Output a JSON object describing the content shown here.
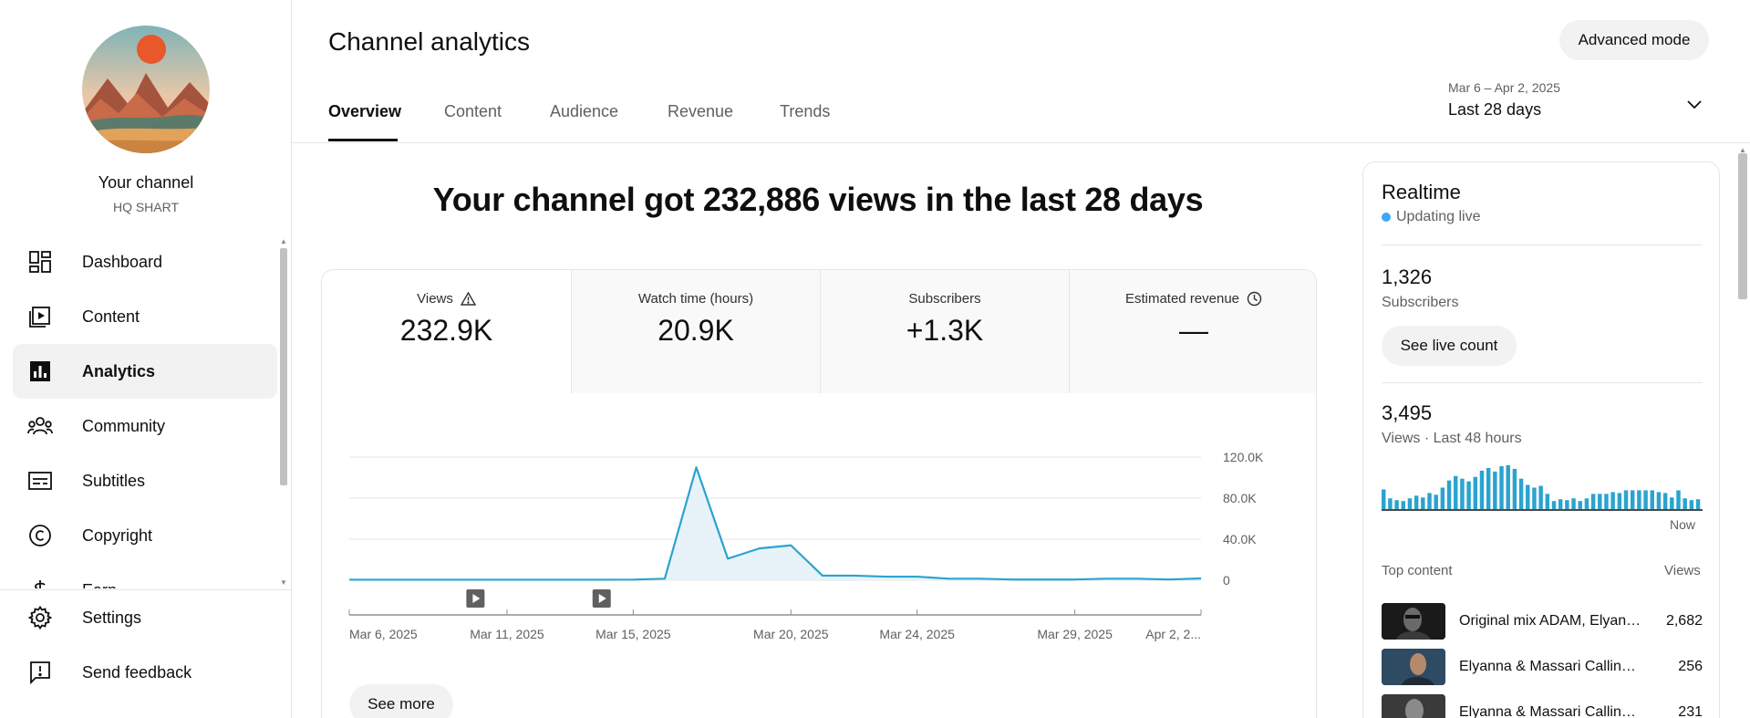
{
  "sidebar": {
    "channel_title": "Your channel",
    "channel_handle": "HQ SHART",
    "items": [
      {
        "label": "Dashboard",
        "icon": "dashboard-icon"
      },
      {
        "label": "Content",
        "icon": "content-icon"
      },
      {
        "label": "Analytics",
        "icon": "analytics-icon",
        "active": true
      },
      {
        "label": "Community",
        "icon": "community-icon"
      },
      {
        "label": "Subtitles",
        "icon": "subtitles-icon"
      },
      {
        "label": "Copyright",
        "icon": "copyright-icon"
      },
      {
        "label": "Earn",
        "icon": "earn-icon"
      }
    ],
    "footer": [
      {
        "label": "Settings",
        "icon": "gear-icon"
      },
      {
        "label": "Send feedback",
        "icon": "feedback-icon"
      }
    ]
  },
  "header": {
    "title": "Channel analytics",
    "advanced_mode": "Advanced mode",
    "tabs": [
      {
        "label": "Overview",
        "active": true
      },
      {
        "label": "Content"
      },
      {
        "label": "Audience"
      },
      {
        "label": "Revenue"
      },
      {
        "label": "Trends"
      }
    ],
    "date_range": "Mar 6 – Apr 2, 2025",
    "date_label": "Last 28 days"
  },
  "headline": "Your channel got 232,886 views in the last 28 days",
  "metrics": [
    {
      "label": "Views",
      "value": "232.9K",
      "icon": "warning-icon"
    },
    {
      "label": "Watch time (hours)",
      "value": "20.9K"
    },
    {
      "label": "Subscribers",
      "value": "+1.3K"
    },
    {
      "label": "Estimated revenue",
      "value": "—",
      "icon": "clock-icon"
    }
  ],
  "see_more": "See more",
  "chart_data": {
    "type": "area",
    "x": [
      "Mar 6, 2025",
      "Mar 7, 2025",
      "Mar 8, 2025",
      "Mar 9, 2025",
      "Mar 10, 2025",
      "Mar 11, 2025",
      "Mar 12, 2025",
      "Mar 13, 2025",
      "Mar 14, 2025",
      "Mar 15, 2025",
      "Mar 16, 2025",
      "Mar 17, 2025",
      "Mar 18, 2025",
      "Mar 19, 2025",
      "Mar 20, 2025",
      "Mar 21, 2025",
      "Mar 22, 2025",
      "Mar 23, 2025",
      "Mar 24, 2025",
      "Mar 25, 2025",
      "Mar 26, 2025",
      "Mar 27, 2025",
      "Mar 28, 2025",
      "Mar 29, 2025",
      "Mar 30, 2025",
      "Mar 31, 2025",
      "Apr 1, 2025",
      "Apr 2, 2025"
    ],
    "series": [
      {
        "values": [
          500,
          500,
          500,
          500,
          500,
          500,
          500,
          500,
          500,
          600,
          1500,
          110000,
          21000,
          31000,
          34000,
          4500,
          4500,
          3500,
          3500,
          1500,
          1500,
          700,
          700,
          700,
          1500,
          1500,
          700,
          1800
        ]
      }
    ],
    "x_tick_labels": [
      "Mar 6, 2025",
      "Mar 11, 2025",
      "Mar 15, 2025",
      "Mar 20, 2025",
      "Mar 24, 2025",
      "Mar 29, 2025",
      "Apr 2, 2..."
    ],
    "x_tick_index": [
      0,
      5,
      9,
      14,
      18,
      23,
      27
    ],
    "y_tick_labels": [
      "0",
      "40.0K",
      "80.0K",
      "120.0K"
    ],
    "y_tick_values": [
      0,
      40000,
      80000,
      120000
    ],
    "ylim": [
      0,
      120000
    ],
    "grid": true,
    "line_color": "#2ba3cf",
    "fill_color": "#e7f3f9",
    "video_markers_index": [
      4,
      8
    ]
  },
  "realtime": {
    "title": "Realtime",
    "status": "Updating live",
    "subscribers_value": "1,326",
    "subscribers_label": "Subscribers",
    "live_count_button": "See live count",
    "views_value": "3,495",
    "views_label": "Views · Last 48 hours",
    "now_label": "Now",
    "bars": [
      22,
      12,
      10,
      9,
      12,
      15,
      13,
      18,
      16,
      24,
      32,
      37,
      34,
      31,
      36,
      43,
      46,
      42,
      48,
      49,
      45,
      34,
      27,
      24,
      26,
      17,
      9,
      11,
      10,
      12,
      9,
      12,
      17,
      17,
      17,
      19,
      18,
      21,
      21,
      21,
      21,
      21,
      19,
      18,
      13,
      21,
      12,
      10,
      11
    ],
    "top_content_header": "Top content",
    "top_views_header": "Views",
    "top_content": [
      {
        "title": "Original mix ADAM, Elyanna Calling My Name",
        "views": "2,682"
      },
      {
        "title": "Elyanna & Massari Calling My Name",
        "views": "256"
      },
      {
        "title": "Elyanna & Massari Calling My Name",
        "views": "231"
      }
    ]
  }
}
